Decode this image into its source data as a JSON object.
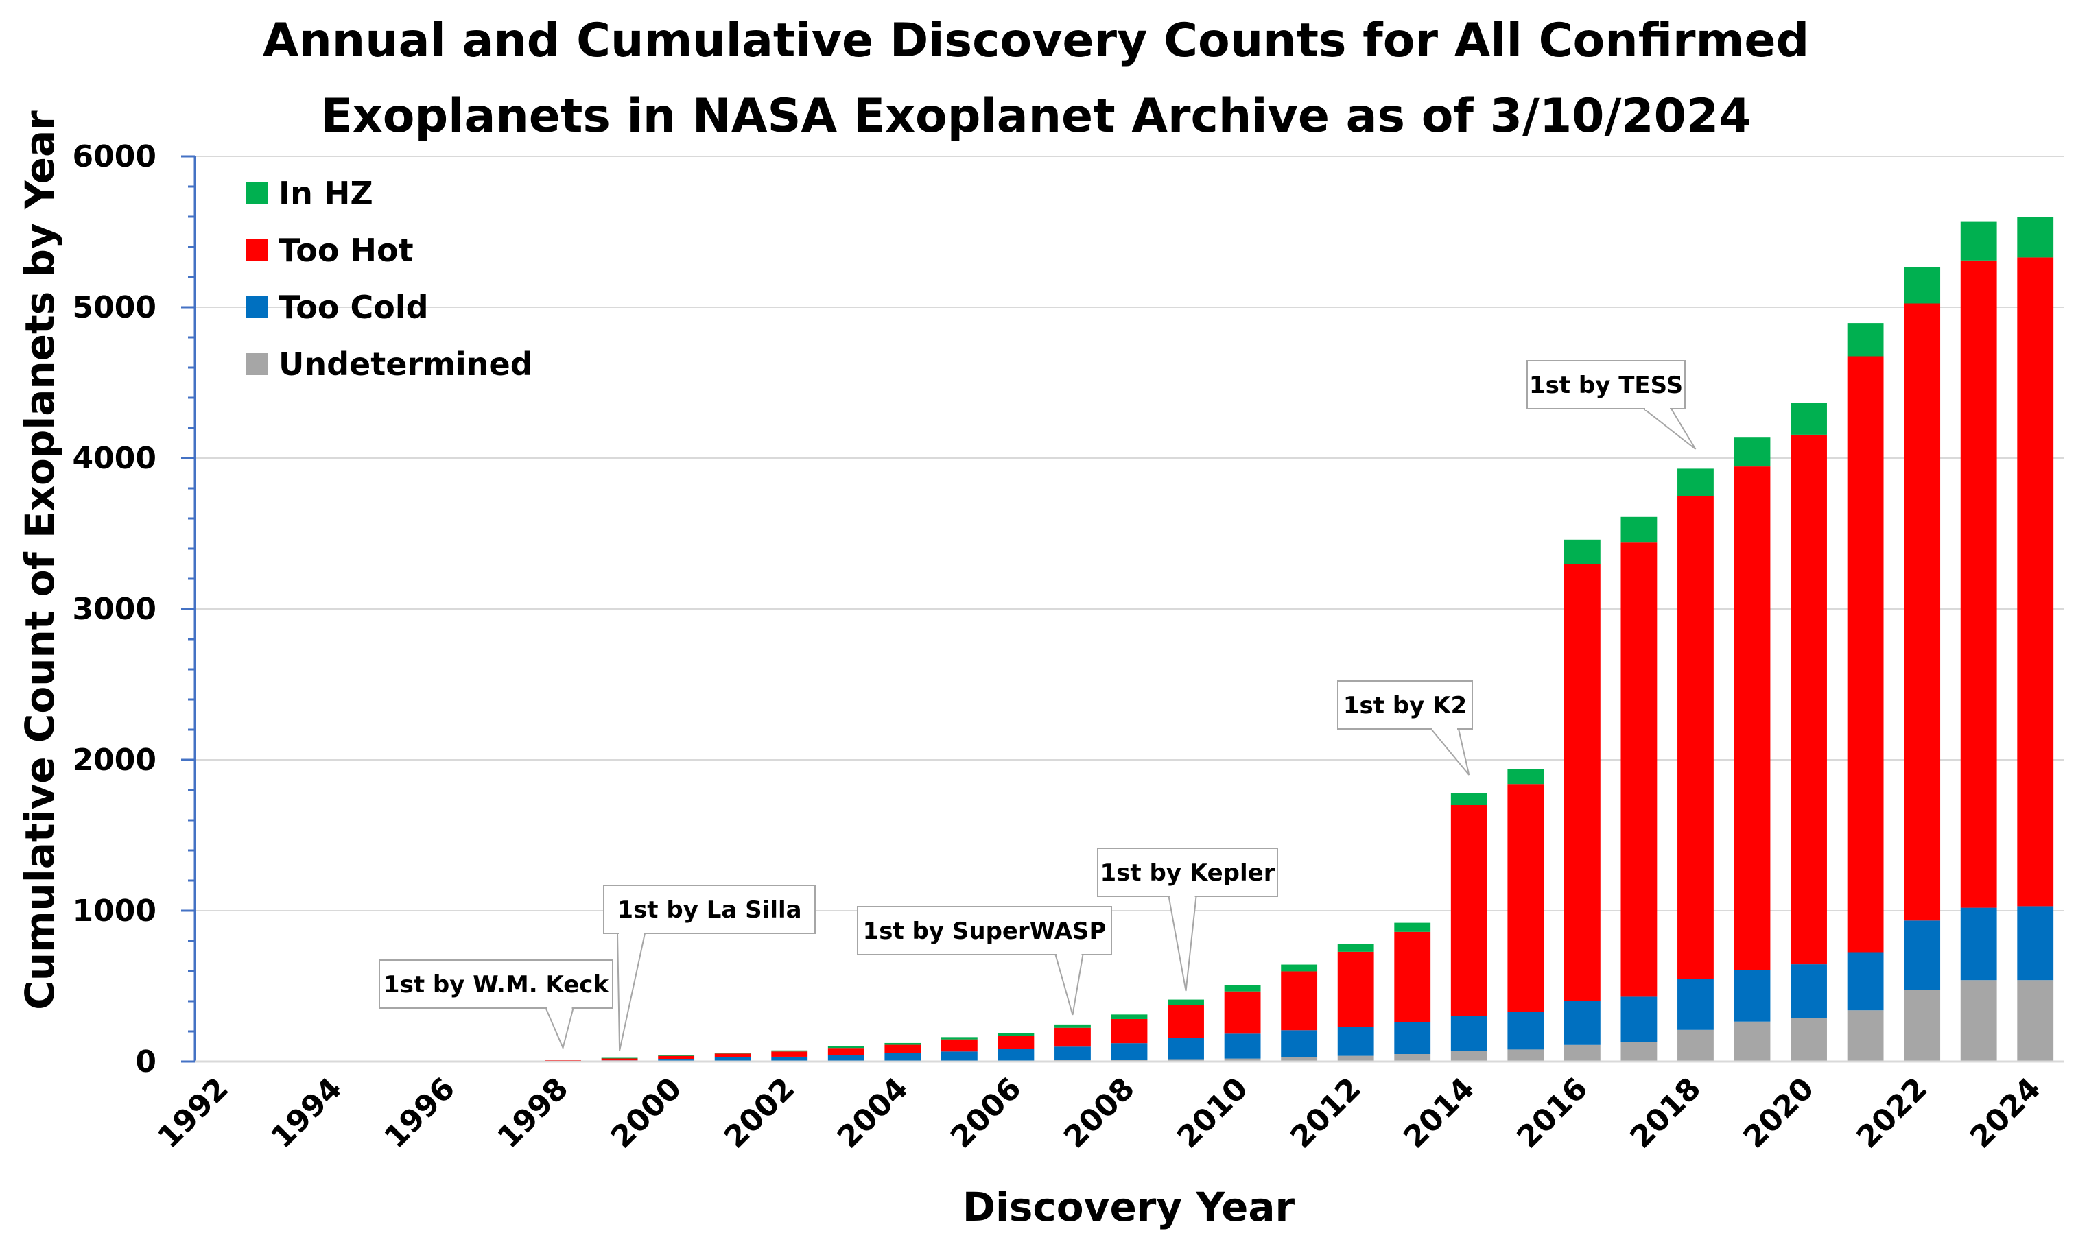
{
  "chart_data": {
    "type": "bar",
    "stacked": true,
    "title_lines": [
      "Annual and Cumulative Discovery Counts for All Confirmed",
      "Exoplanets in NASA Exoplanet Archive as of 3/10/2024"
    ],
    "xlabel": "Discovery Year",
    "ylabel": "Cumulative Count of Exoplanets by Year",
    "ylim": [
      0,
      6000
    ],
    "yticks": [
      0,
      1000,
      2000,
      3000,
      4000,
      5000,
      6000
    ],
    "yticks_labels": [
      "0",
      "1000",
      "2000",
      "3000",
      "4000",
      "5000",
      "6000"
    ],
    "grid": true,
    "legend_position": "top-left",
    "categories": [
      "1992",
      "1993",
      "1994",
      "1995",
      "1996",
      "1997",
      "1998",
      "1999",
      "2000",
      "2001",
      "2002",
      "2003",
      "2004",
      "2005",
      "2006",
      "2007",
      "2008",
      "2009",
      "2010",
      "2011",
      "2012",
      "2013",
      "2014",
      "2015",
      "2016",
      "2017",
      "2018",
      "2019",
      "2020",
      "2021",
      "2022",
      "2023",
      "2024"
    ],
    "xtick_labels": [
      "1992",
      "1994",
      "1996",
      "1998",
      "2000",
      "2002",
      "2004",
      "2006",
      "2008",
      "2010",
      "2012",
      "2014",
      "2016",
      "2018",
      "2020",
      "2022",
      "2024"
    ],
    "series": [
      {
        "name": "Undetermined",
        "color": "#a6a6a6",
        "values": [
          0,
          0,
          0,
          0,
          0,
          0,
          0,
          0,
          0,
          0,
          2,
          3,
          4,
          5,
          7,
          9,
          12,
          16,
          20,
          28,
          38,
          50,
          70,
          80,
          110,
          130,
          210,
          265,
          290,
          340,
          475,
          540,
          540
        ]
      },
      {
        "name": "Too Cold",
        "color": "#0070c0",
        "values": [
          0,
          0,
          0,
          0,
          0,
          0,
          2,
          8,
          18,
          28,
          30,
          42,
          52,
          62,
          75,
          90,
          110,
          140,
          165,
          180,
          190,
          210,
          230,
          250,
          290,
          300,
          340,
          340,
          355,
          385,
          460,
          480,
          490
        ]
      },
      {
        "name": "Too Hot",
        "color": "#ff0000",
        "values": [
          0,
          0,
          0,
          0,
          0,
          0,
          8,
          14,
          20,
          25,
          35,
          45,
          55,
          80,
          90,
          125,
          160,
          220,
          280,
          390,
          500,
          600,
          1400,
          1510,
          2900,
          3010,
          3200,
          3340,
          3510,
          3950,
          4090,
          4290,
          4300
        ]
      },
      {
        "name": "In HZ",
        "color": "#00b050",
        "values": [
          0,
          0,
          0,
          0,
          0,
          0,
          0,
          3,
          4,
          5,
          7,
          10,
          12,
          15,
          18,
          22,
          30,
          35,
          40,
          45,
          50,
          60,
          80,
          100,
          160,
          170,
          180,
          195,
          210,
          220,
          240,
          260,
          270
        ]
      }
    ],
    "legend_order": [
      "In HZ",
      "Too Hot",
      "Too Cold",
      "Undetermined"
    ],
    "annotations": [
      {
        "text": "1st by W.M. Keck",
        "year": "1998"
      },
      {
        "text": "1st by La Silla",
        "year": "1999"
      },
      {
        "text": "1st by SuperWASP",
        "year": "2007"
      },
      {
        "text": "1st by Kepler",
        "year": "2009"
      },
      {
        "text": "1st by K2",
        "year": "2014"
      },
      {
        "text": "1st by TESS",
        "year": "2018"
      }
    ]
  }
}
